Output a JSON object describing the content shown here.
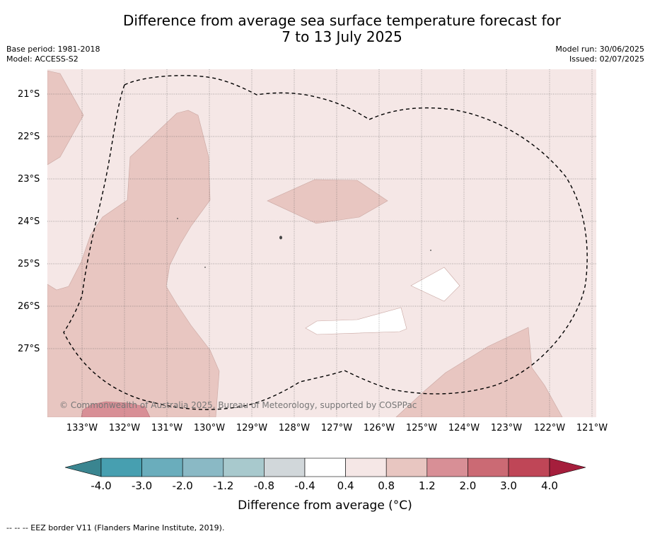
{
  "title_line1": "Difference from average sea surface temperature forecast for",
  "title_line2": "7 to 13 July 2025",
  "base_period": "Base period: 1981-2018",
  "model": "Model: ACCESS-S2",
  "model_run": "Model run: 30/06/2025",
  "issued": "Issued: 02/07/2025",
  "copyright": "© Commonwealth of Australia 2025, Bureau of Meteorology, supported by COSPPac",
  "lat_labels": [
    "21°S",
    "22°S",
    "23°S",
    "24°S",
    "25°S",
    "26°S",
    "27°S"
  ],
  "lon_labels": [
    "133°W",
    "132°W",
    "131°W",
    "130°W",
    "129°W",
    "128°W",
    "127°W",
    "126°W",
    "125°W",
    "124°W",
    "123°W",
    "122°W",
    "121°W"
  ],
  "colorbar": {
    "label": "Difference from average (°C)",
    "ticks": [
      "-4.0",
      "-3.0",
      "-2.0",
      "-1.2",
      "-0.8",
      "-0.4",
      "0.4",
      "0.8",
      "1.2",
      "2.0",
      "3.0",
      "4.0"
    ],
    "colors": [
      "#479fb0",
      "#6aadbc",
      "#8ab9c5",
      "#a8c9cd",
      "#d1d7da",
      "#ffffff",
      "#f5e7e6",
      "#e8c6c1",
      "#d88f96",
      "#cb6a74",
      "#bf4657"
    ],
    "under_color": "#3a8590",
    "over_color": "#a51e3c"
  },
  "footer": "--  --  -- EEZ border V11 (Flanders Marine Institute, 2019).",
  "colors": {
    "background_anomaly": "#f5e7e6",
    "warm_anomaly": "#e8c6c1",
    "warmer_anomaly": "#d88f96",
    "neutral": "#ffffff"
  }
}
